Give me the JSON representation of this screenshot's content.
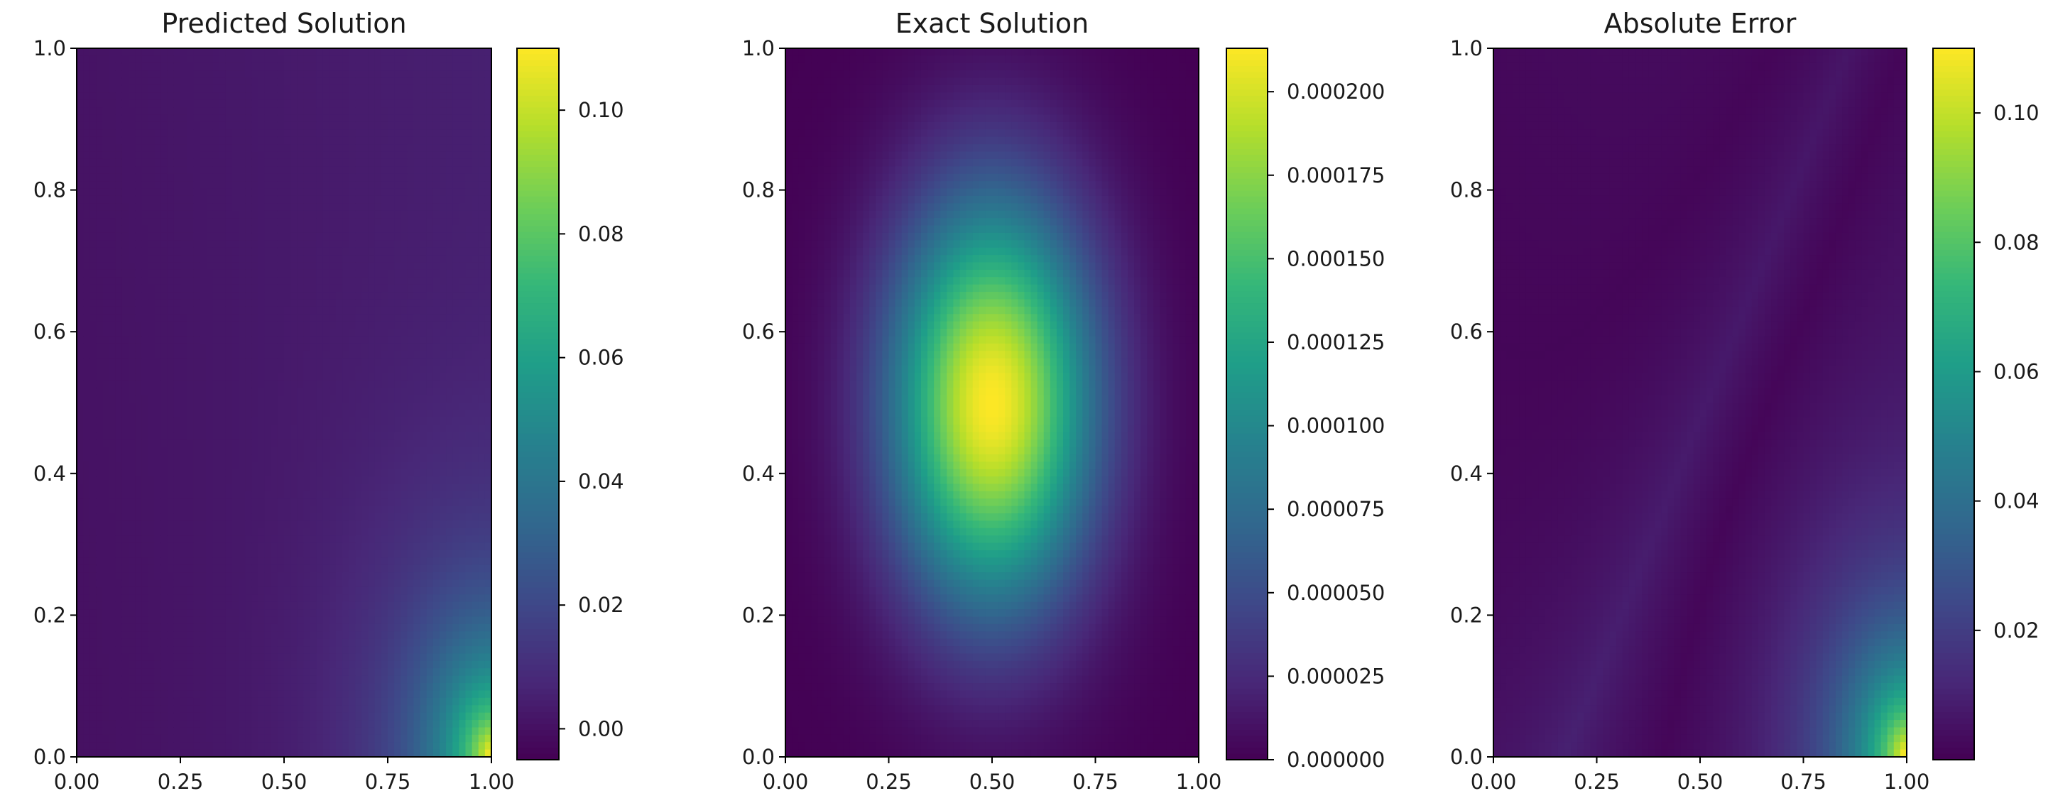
{
  "figure": {
    "layout": "1x3 heatmap panels with colorbars"
  },
  "colormap": [
    "#440154",
    "#482878",
    "#3e4989",
    "#31688e",
    "#26828e",
    "#1f9e89",
    "#35b779",
    "#6ece58",
    "#b5de2b",
    "#fde725"
  ],
  "chart_data": [
    {
      "type": "heatmap",
      "title": "Predicted Solution",
      "xlabel": "",
      "ylabel": "",
      "xlim": [
        0,
        1
      ],
      "ylim": [
        0,
        1
      ],
      "xticks": [
        "0.00",
        "0.25",
        "0.50",
        "0.75",
        "1.00"
      ],
      "yticks": [
        "0.0",
        "0.2",
        "0.4",
        "0.6",
        "0.8",
        "1.0"
      ],
      "field": "predicted",
      "colorbar": {
        "min": -0.005,
        "max": 0.11,
        "ticks": [
          "0.00",
          "0.02",
          "0.04",
          "0.06",
          "0.08",
          "0.10"
        ],
        "tick_values": [
          0.0,
          0.02,
          0.04,
          0.06,
          0.08,
          0.1
        ]
      },
      "grid": false
    },
    {
      "type": "heatmap",
      "title": "Exact Solution",
      "xlabel": "",
      "ylabel": "",
      "xlim": [
        0,
        1
      ],
      "ylim": [
        0,
        1
      ],
      "xticks": [
        "0.00",
        "0.25",
        "0.50",
        "0.75",
        "1.00"
      ],
      "yticks": [
        "0.0",
        "0.2",
        "0.4",
        "0.6",
        "0.8",
        "1.0"
      ],
      "field": "exact",
      "peak": {
        "x": 0.5,
        "y": 0.5,
        "value": 0.000213
      },
      "colorbar": {
        "min": 0.0,
        "max": 0.000213,
        "ticks": [
          "0.000000",
          "0.000025",
          "0.000050",
          "0.000075",
          "0.000100",
          "0.000125",
          "0.000150",
          "0.000175",
          "0.000200"
        ],
        "tick_values": [
          0.0,
          2.5e-05,
          5e-05,
          7.5e-05,
          0.0001,
          0.000125,
          0.00015,
          0.000175,
          0.0002
        ]
      },
      "grid": false
    },
    {
      "type": "heatmap",
      "title": "Absolute Error",
      "xlabel": "",
      "ylabel": "",
      "xlim": [
        0,
        1
      ],
      "ylim": [
        0,
        1
      ],
      "xticks": [
        "0.00",
        "0.25",
        "0.50",
        "0.75",
        "1.00"
      ],
      "yticks": [
        "0.0",
        "0.2",
        "0.4",
        "0.6",
        "0.8",
        "1.0"
      ],
      "field": "error",
      "colorbar": {
        "min": 0.0,
        "max": 0.11,
        "ticks": [
          "0.02",
          "0.04",
          "0.06",
          "0.08",
          "0.10"
        ],
        "tick_values": [
          0.02,
          0.04,
          0.06,
          0.08,
          0.1
        ]
      },
      "grid": false
    }
  ]
}
